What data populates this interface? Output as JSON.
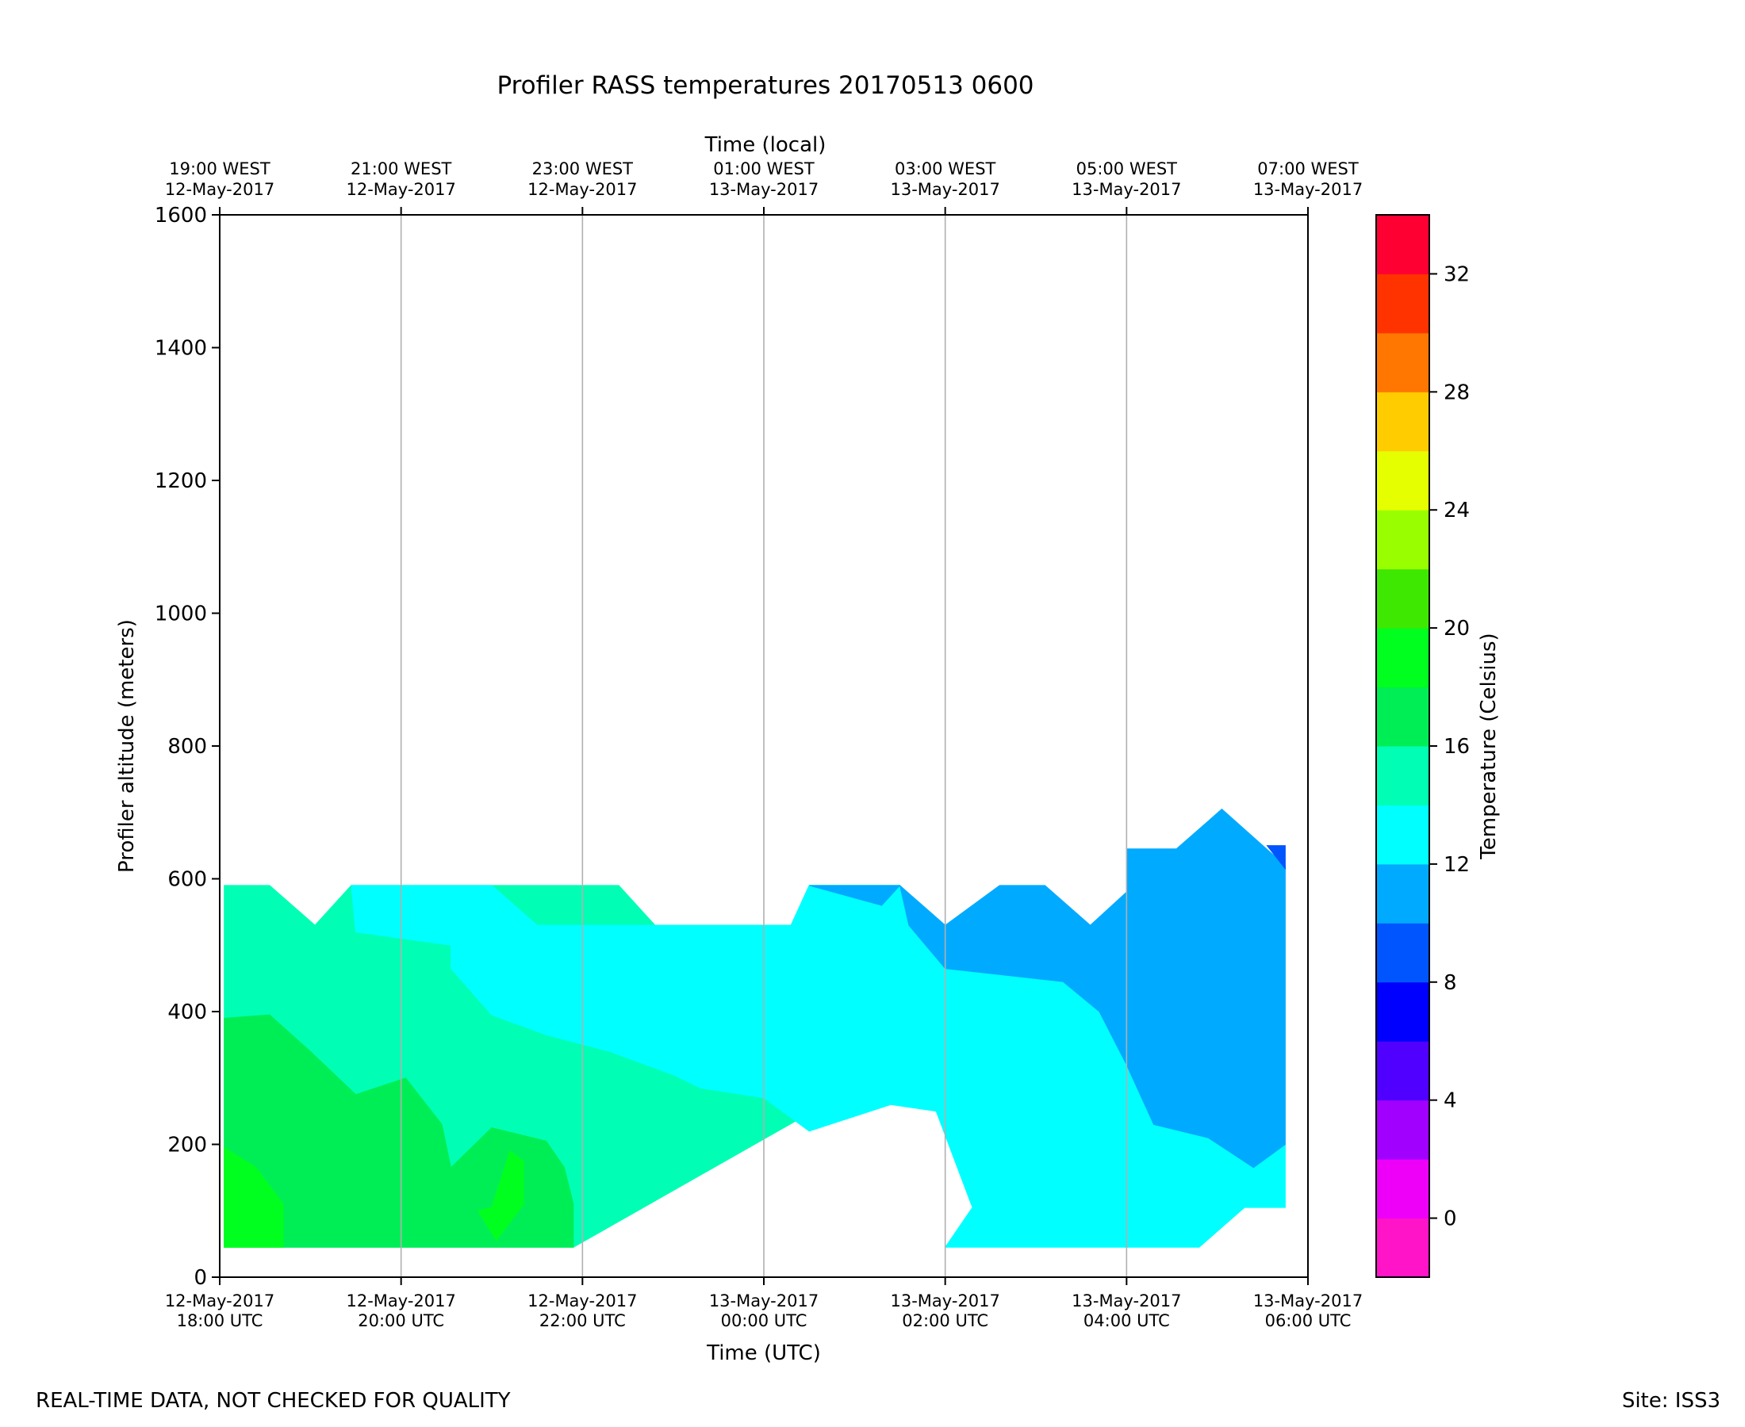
{
  "chart_data": {
    "type": "heatmap",
    "title": "Profiler RASS temperatures 20170513 0600",
    "xlabel": "Time (UTC)",
    "x2label": "Time (local)",
    "ylabel": "Profiler altitude (meters)",
    "colorbar_label": "Temperature (Celsius)",
    "footer_left": "REAL-TIME DATA, NOT CHECKED FOR QUALITY",
    "footer_right": "Site: ISS3",
    "x_hours": [
      0,
      2,
      4,
      6,
      8,
      10,
      12
    ],
    "xlim": [
      0,
      12
    ],
    "ylim": [
      0,
      1600
    ],
    "grid": "vertical",
    "x_ticks_utc": [
      [
        "12-May-2017",
        "18:00 UTC"
      ],
      [
        "12-May-2017",
        "20:00 UTC"
      ],
      [
        "12-May-2017",
        "22:00 UTC"
      ],
      [
        "13-May-2017",
        "00:00 UTC"
      ],
      [
        "13-May-2017",
        "02:00 UTC"
      ],
      [
        "13-May-2017",
        "04:00 UTC"
      ],
      [
        "13-May-2017",
        "06:00 UTC"
      ]
    ],
    "x_ticks_local": [
      [
        "19:00 WEST",
        "12-May-2017"
      ],
      [
        "21:00 WEST",
        "12-May-2017"
      ],
      [
        "23:00 WEST",
        "12-May-2017"
      ],
      [
        "01:00 WEST",
        "13-May-2017"
      ],
      [
        "03:00 WEST",
        "13-May-2017"
      ],
      [
        "05:00 WEST",
        "13-May-2017"
      ],
      [
        "07:00 WEST",
        "13-May-2017"
      ]
    ],
    "y_ticks": [
      0,
      200,
      400,
      600,
      800,
      1000,
      1200,
      1400,
      1600
    ],
    "colorbar": {
      "min": -2,
      "max": 34,
      "tick_values": [
        0,
        4,
        8,
        12,
        16,
        20,
        24,
        28,
        32
      ],
      "levels": [
        {
          "lo": -2,
          "hi": 0,
          "color": "#ff14c8"
        },
        {
          "lo": 0,
          "hi": 2,
          "color": "#ee00f8"
        },
        {
          "lo": 2,
          "hi": 4,
          "color": "#a100ff"
        },
        {
          "lo": 4,
          "hi": 6,
          "color": "#5000ff"
        },
        {
          "lo": 6,
          "hi": 8,
          "color": "#0000ff"
        },
        {
          "lo": 8,
          "hi": 10,
          "color": "#0055ff"
        },
        {
          "lo": 10,
          "hi": 12,
          "color": "#00aaff"
        },
        {
          "lo": 12,
          "hi": 14,
          "color": "#00ffff"
        },
        {
          "lo": 14,
          "hi": 16,
          "color": "#00ffb4"
        },
        {
          "lo": 16,
          "hi": 18,
          "color": "#00ee55"
        },
        {
          "lo": 18,
          "hi": 20,
          "color": "#00ff1e"
        },
        {
          "lo": 20,
          "hi": 22,
          "color": "#3ee800"
        },
        {
          "lo": 22,
          "hi": 24,
          "color": "#99ff00"
        },
        {
          "lo": 24,
          "hi": 26,
          "color": "#e5ff00"
        },
        {
          "lo": 26,
          "hi": 28,
          "color": "#ffcc00"
        },
        {
          "lo": 28,
          "hi": 30,
          "color": "#ff7700"
        },
        {
          "lo": 30,
          "hi": 32,
          "color": "#ff3300"
        },
        {
          "lo": 32,
          "hi": 34,
          "color": "#ff0033"
        }
      ]
    },
    "regions": [
      {
        "name": "region-temp-14-16",
        "color": "#00ffb4",
        "points": [
          [
            0.05,
            45
          ],
          [
            0.05,
            590
          ],
          [
            0.55,
            590
          ],
          [
            1.05,
            530
          ],
          [
            1.45,
            590
          ],
          [
            3.5,
            590
          ],
          [
            4.4,
            590
          ],
          [
            4.8,
            530
          ],
          [
            6.3,
            530
          ],
          [
            6.5,
            590
          ],
          [
            7.5,
            590
          ],
          [
            7.4,
            450
          ],
          [
            6.8,
            270
          ],
          [
            3.9,
            45
          ]
        ]
      },
      {
        "name": "region-temp-12-14",
        "color": "#00ffff",
        "points": [
          [
            1.45,
            590
          ],
          [
            3.0,
            590
          ],
          [
            3.5,
            530
          ],
          [
            6.3,
            530
          ],
          [
            6.5,
            590
          ],
          [
            7.5,
            590
          ],
          [
            7.6,
            530
          ],
          [
            8.0,
            465
          ],
          [
            9.3,
            445
          ],
          [
            9.7,
            400
          ],
          [
            10.0,
            320
          ],
          [
            10.3,
            230
          ],
          [
            10.9,
            210
          ],
          [
            11.4,
            165
          ],
          [
            11.75,
            200
          ],
          [
            11.75,
            105
          ],
          [
            11.3,
            105
          ],
          [
            10.8,
            45
          ],
          [
            8.0,
            45
          ],
          [
            8.3,
            105
          ],
          [
            7.9,
            250
          ],
          [
            7.4,
            260
          ],
          [
            6.5,
            220
          ],
          [
            6.0,
            270
          ],
          [
            5.3,
            285
          ],
          [
            5.0,
            305
          ],
          [
            4.3,
            340
          ],
          [
            3.6,
            365
          ],
          [
            3.0,
            395
          ],
          [
            2.55,
            465
          ],
          [
            2.55,
            500
          ],
          [
            1.5,
            520
          ]
        ]
      },
      {
        "name": "region-temp-16-18",
        "color": "#00ee55",
        "points": [
          [
            0.05,
            45
          ],
          [
            0.05,
            390
          ],
          [
            0.55,
            395
          ],
          [
            1.0,
            340
          ],
          [
            1.5,
            275
          ],
          [
            2.05,
            300
          ],
          [
            2.45,
            230
          ],
          [
            2.55,
            165
          ],
          [
            3.0,
            225
          ],
          [
            3.6,
            205
          ],
          [
            3.8,
            165
          ],
          [
            3.9,
            110
          ],
          [
            3.9,
            45
          ]
        ]
      },
      {
        "name": "region-temp-18-20-a",
        "color": "#00ff1e",
        "points": [
          [
            0.05,
            45
          ],
          [
            0.05,
            195
          ],
          [
            0.4,
            165
          ],
          [
            0.7,
            110
          ],
          [
            0.7,
            45
          ]
        ]
      },
      {
        "name": "region-temp-18-20-b",
        "color": "#00ff1e",
        "points": [
          [
            3.0,
            105
          ],
          [
            3.2,
            190
          ],
          [
            3.35,
            175
          ],
          [
            3.35,
            110
          ],
          [
            3.05,
            55
          ],
          [
            2.85,
            100
          ]
        ]
      },
      {
        "name": "region-temp-10-12",
        "color": "#00aaff",
        "points": [
          [
            6.5,
            590
          ],
          [
            7.5,
            590
          ],
          [
            8.0,
            530
          ],
          [
            8.6,
            590
          ],
          [
            9.1,
            590
          ],
          [
            9.6,
            530
          ],
          [
            10.0,
            580
          ],
          [
            10.0,
            645
          ],
          [
            10.55,
            645
          ],
          [
            11.05,
            705
          ],
          [
            11.75,
            620
          ],
          [
            11.75,
            200
          ],
          [
            11.4,
            165
          ],
          [
            10.9,
            210
          ],
          [
            10.3,
            230
          ],
          [
            10.0,
            320
          ],
          [
            9.7,
            400
          ],
          [
            9.3,
            445
          ],
          [
            8.0,
            465
          ],
          [
            7.6,
            530
          ],
          [
            7.5,
            590
          ],
          [
            7.3,
            560
          ]
        ]
      },
      {
        "name": "region-temp-8-10",
        "color": "#0055ff",
        "points": [
          [
            11.55,
            650
          ],
          [
            11.75,
            650
          ],
          [
            11.75,
            615
          ]
        ]
      }
    ]
  }
}
